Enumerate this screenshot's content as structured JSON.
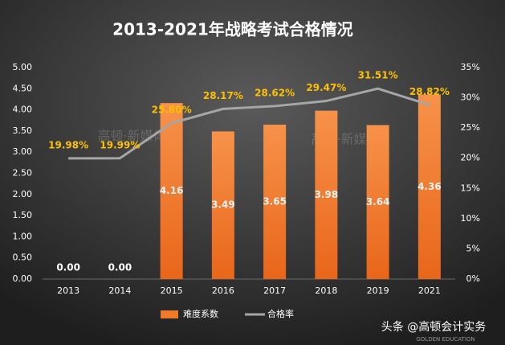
{
  "chart_data": {
    "type": "bar",
    "title": "2013-2021年战略考试合格情况",
    "categories": [
      "2013",
      "2014",
      "2015",
      "2016",
      "2017",
      "2018",
      "2019",
      "2021"
    ],
    "series": [
      {
        "name": "难度系数",
        "type": "bar",
        "color": "#f07a2a",
        "values": [
          0,
          0,
          4.16,
          3.49,
          3.65,
          3.98,
          3.64,
          4.36
        ],
        "value_labels": [
          "0.00",
          "0.00",
          "4.16",
          "3.49",
          "3.65",
          "3.98",
          "3.64",
          "4.36"
        ]
      },
      {
        "name": "合格率",
        "type": "line",
        "axis": "y2",
        "color": "#a6a6a6",
        "values": [
          19.98,
          19.99,
          25.8,
          28.17,
          28.62,
          29.47,
          31.51,
          28.82
        ],
        "value_labels": [
          "19.98%",
          "19.99%",
          "25.80%",
          "28.17%",
          "28.62%",
          "29.47%",
          "31.51%",
          "28.82%"
        ]
      }
    ],
    "ylim": [
      0,
      5
    ],
    "yticks": [
      {
        "value": 0,
        "label": "0.00"
      },
      {
        "value": 0.5,
        "label": "0.50"
      },
      {
        "value": 1,
        "label": "1.00"
      },
      {
        "value": 1.5,
        "label": "1.50"
      },
      {
        "value": 2,
        "label": "2.00"
      },
      {
        "value": 2.5,
        "label": "2.50"
      },
      {
        "value": 3,
        "label": "3.00"
      },
      {
        "value": 3.5,
        "label": "3.50"
      },
      {
        "value": 4,
        "label": "4.00"
      },
      {
        "value": 4.5,
        "label": "4.50"
      },
      {
        "value": 5,
        "label": "5.00"
      }
    ],
    "y2lim": [
      0,
      35
    ],
    "y2ticks": [
      {
        "value": 0,
        "label": "0%"
      },
      {
        "value": 5,
        "label": "5%"
      },
      {
        "value": 10,
        "label": "10%"
      },
      {
        "value": 15,
        "label": "15%"
      },
      {
        "value": 20,
        "label": "20%"
      },
      {
        "value": 25,
        "label": "25%"
      },
      {
        "value": 30,
        "label": "30%"
      },
      {
        "value": 35,
        "label": "35%"
      }
    ],
    "legend": "bottom",
    "watermark": "高顿·新媒体",
    "credit": "头条 @高顿会计实务",
    "credit_sub": "GOLDEN EDUCATION"
  }
}
